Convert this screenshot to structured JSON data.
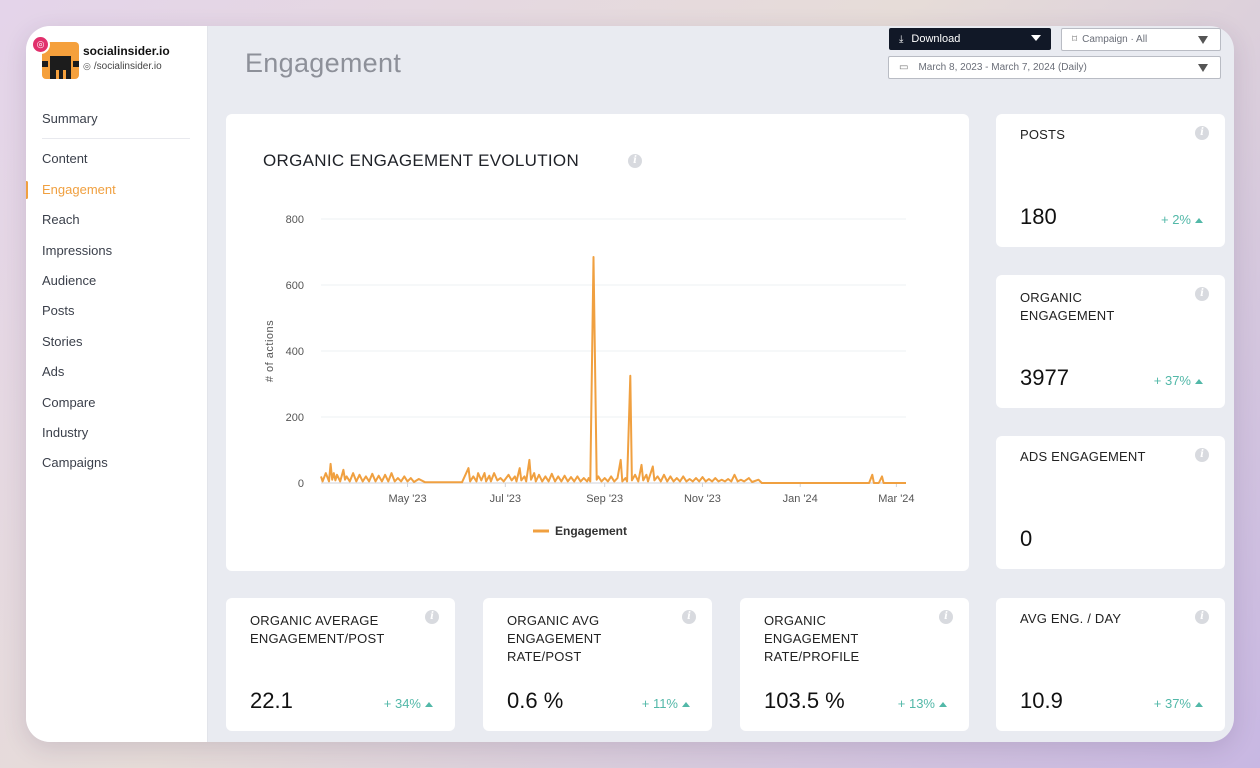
{
  "brand": {
    "name": "socialinsider.io",
    "handle": "/socialinsider.io"
  },
  "sidebar": {
    "items": [
      {
        "label": "Summary",
        "active": false
      },
      {
        "label": "Content",
        "active": false
      },
      {
        "label": "Engagement",
        "active": true
      },
      {
        "label": "Reach",
        "active": false
      },
      {
        "label": "Impressions",
        "active": false
      },
      {
        "label": "Audience",
        "active": false
      },
      {
        "label": "Posts",
        "active": false
      },
      {
        "label": "Stories",
        "active": false
      },
      {
        "label": "Ads",
        "active": false
      },
      {
        "label": "Compare",
        "active": false
      },
      {
        "label": "Industry",
        "active": false
      },
      {
        "label": "Campaigns",
        "active": false
      }
    ]
  },
  "header": {
    "title": "Engagement",
    "download_label": "Download",
    "campaign_label": "Campaign · All",
    "date_range": "March 8, 2023 - March 7, 2024 (Daily)"
  },
  "colors": {
    "accent": "#f0a040",
    "positive": "#52b8a8",
    "download_bg": "#111827"
  },
  "chart_data": {
    "type": "line",
    "title": "ORGANIC ENGAGEMENT EVOLUTION",
    "ylabel": "# of actions",
    "xlabel": "",
    "ylim": [
      0,
      800
    ],
    "yticks": [
      "800",
      "600",
      "400",
      "200",
      "0"
    ],
    "xticks": [
      "May '23",
      "Jul '23",
      "Sep '23",
      "Nov '23",
      "Jan '24",
      "Mar '24"
    ],
    "legend": "bottom-center",
    "grid": true,
    "series": [
      {
        "name": "Engagement",
        "color": "#f0a040",
        "points": [
          [
            "2023-03-08",
            20
          ],
          [
            "2023-03-09",
            5
          ],
          [
            "2023-03-11",
            30
          ],
          [
            "2023-03-13",
            5
          ],
          [
            "2023-03-14",
            58
          ],
          [
            "2023-03-15",
            10
          ],
          [
            "2023-03-16",
            30
          ],
          [
            "2023-03-17",
            8
          ],
          [
            "2023-03-18",
            25
          ],
          [
            "2023-03-20",
            5
          ],
          [
            "2023-03-22",
            40
          ],
          [
            "2023-03-23",
            10
          ],
          [
            "2023-03-24",
            20
          ],
          [
            "2023-03-26",
            5
          ],
          [
            "2023-03-28",
            30
          ],
          [
            "2023-03-30",
            5
          ],
          [
            "2023-04-01",
            25
          ],
          [
            "2023-04-03",
            5
          ],
          [
            "2023-04-05",
            20
          ],
          [
            "2023-04-07",
            5
          ],
          [
            "2023-04-09",
            28
          ],
          [
            "2023-04-11",
            5
          ],
          [
            "2023-04-13",
            22
          ],
          [
            "2023-04-15",
            5
          ],
          [
            "2023-04-17",
            25
          ],
          [
            "2023-04-19",
            5
          ],
          [
            "2023-04-21",
            30
          ],
          [
            "2023-04-23",
            5
          ],
          [
            "2023-04-25",
            15
          ],
          [
            "2023-04-27",
            5
          ],
          [
            "2023-04-29",
            20
          ],
          [
            "2023-05-01",
            5
          ],
          [
            "2023-05-03",
            15
          ],
          [
            "2023-05-05",
            3
          ],
          [
            "2023-05-08",
            12
          ],
          [
            "2023-05-12",
            2
          ],
          [
            "2023-05-20",
            2
          ],
          [
            "2023-05-28",
            2
          ],
          [
            "2023-06-04",
            2
          ],
          [
            "2023-06-08",
            45
          ],
          [
            "2023-06-09",
            5
          ],
          [
            "2023-06-11",
            20
          ],
          [
            "2023-06-13",
            5
          ],
          [
            "2023-06-14",
            30
          ],
          [
            "2023-06-16",
            8
          ],
          [
            "2023-06-18",
            30
          ],
          [
            "2023-06-19",
            5
          ],
          [
            "2023-06-21",
            22
          ],
          [
            "2023-06-22",
            5
          ],
          [
            "2023-06-24",
            30
          ],
          [
            "2023-06-26",
            8
          ],
          [
            "2023-06-28",
            15
          ],
          [
            "2023-06-30",
            5
          ],
          [
            "2023-07-03",
            25
          ],
          [
            "2023-07-05",
            8
          ],
          [
            "2023-07-07",
            20
          ],
          [
            "2023-07-08",
            5
          ],
          [
            "2023-07-10",
            45
          ],
          [
            "2023-07-11",
            8
          ],
          [
            "2023-07-13",
            20
          ],
          [
            "2023-07-14",
            5
          ],
          [
            "2023-07-16",
            70
          ],
          [
            "2023-07-17",
            10
          ],
          [
            "2023-07-19",
            30
          ],
          [
            "2023-07-20",
            5
          ],
          [
            "2023-07-22",
            25
          ],
          [
            "2023-07-24",
            5
          ],
          [
            "2023-07-26",
            20
          ],
          [
            "2023-07-28",
            5
          ],
          [
            "2023-07-30",
            28
          ],
          [
            "2023-08-01",
            5
          ],
          [
            "2023-08-03",
            20
          ],
          [
            "2023-08-05",
            5
          ],
          [
            "2023-08-07",
            22
          ],
          [
            "2023-08-09",
            5
          ],
          [
            "2023-08-11",
            18
          ],
          [
            "2023-08-13",
            5
          ],
          [
            "2023-08-15",
            20
          ],
          [
            "2023-08-17",
            5
          ],
          [
            "2023-08-19",
            15
          ],
          [
            "2023-08-21",
            5
          ],
          [
            "2023-08-22",
            15
          ],
          [
            "2023-08-23",
            5
          ],
          [
            "2023-08-25",
            685
          ],
          [
            "2023-08-27",
            10
          ],
          [
            "2023-08-28",
            20
          ],
          [
            "2023-08-30",
            5
          ],
          [
            "2023-09-01",
            15
          ],
          [
            "2023-09-03",
            5
          ],
          [
            "2023-09-05",
            20
          ],
          [
            "2023-09-07",
            5
          ],
          [
            "2023-09-09",
            15
          ],
          [
            "2023-09-11",
            70
          ],
          [
            "2023-09-12",
            5
          ],
          [
            "2023-09-14",
            15
          ],
          [
            "2023-09-15",
            5
          ],
          [
            "2023-09-17",
            325
          ],
          [
            "2023-09-18",
            8
          ],
          [
            "2023-09-20",
            25
          ],
          [
            "2023-09-22",
            5
          ],
          [
            "2023-09-24",
            55
          ],
          [
            "2023-09-25",
            8
          ],
          [
            "2023-09-27",
            25
          ],
          [
            "2023-09-28",
            5
          ],
          [
            "2023-10-01",
            50
          ],
          [
            "2023-10-02",
            8
          ],
          [
            "2023-10-04",
            20
          ],
          [
            "2023-10-06",
            5
          ],
          [
            "2023-10-08",
            25
          ],
          [
            "2023-10-10",
            5
          ],
          [
            "2023-10-12",
            20
          ],
          [
            "2023-10-14",
            5
          ],
          [
            "2023-10-16",
            15
          ],
          [
            "2023-10-18",
            5
          ],
          [
            "2023-10-20",
            20
          ],
          [
            "2023-10-22",
            5
          ],
          [
            "2023-10-24",
            12
          ],
          [
            "2023-10-26",
            5
          ],
          [
            "2023-10-28",
            15
          ],
          [
            "2023-10-30",
            5
          ],
          [
            "2023-11-01",
            18
          ],
          [
            "2023-11-03",
            5
          ],
          [
            "2023-11-05",
            12
          ],
          [
            "2023-11-07",
            5
          ],
          [
            "2023-11-09",
            15
          ],
          [
            "2023-11-11",
            5
          ],
          [
            "2023-11-13",
            10
          ],
          [
            "2023-11-15",
            5
          ],
          [
            "2023-11-17",
            12
          ],
          [
            "2023-11-19",
            5
          ],
          [
            "2023-11-21",
            25
          ],
          [
            "2023-11-23",
            5
          ],
          [
            "2023-11-25",
            10
          ],
          [
            "2023-11-27",
            5
          ],
          [
            "2023-11-30",
            15
          ],
          [
            "2023-12-02",
            3
          ],
          [
            "2023-12-06",
            10
          ],
          [
            "2023-12-08",
            0
          ],
          [
            "2024-01-01",
            0
          ],
          [
            "2024-02-01",
            0
          ],
          [
            "2024-02-13",
            0
          ],
          [
            "2024-02-15",
            25
          ],
          [
            "2024-02-16",
            0
          ],
          [
            "2024-02-19",
            0
          ],
          [
            "2024-02-21",
            20
          ],
          [
            "2024-02-22",
            0
          ],
          [
            "2024-03-07",
            0
          ]
        ]
      }
    ]
  },
  "stats": {
    "posts": {
      "label": "POSTS",
      "value": "180",
      "delta": "+ 2%"
    },
    "organic_engagement": {
      "label": "ORGANIC ENGAGEMENT",
      "value": "3977",
      "delta": "+ 37%"
    },
    "ads_engagement": {
      "label": "ADS ENGAGEMENT",
      "value": "0"
    },
    "avg_eng_post": {
      "label": "ORGANIC AVERAGE ENGAGEMENT/POST",
      "value": "22.1",
      "delta": "+ 34%"
    },
    "avg_eng_rate_post": {
      "label": "ORGANIC AVG ENGAGEMENT RATE/POST",
      "value": "0.6 %",
      "delta": "+ 11%"
    },
    "eng_rate_profile": {
      "label": "ORGANIC ENGAGEMENT RATE/PROFILE",
      "value": "103.5 %",
      "delta": "+ 13%"
    },
    "avg_eng_day": {
      "label": "AVG ENG. / DAY",
      "value": "10.9",
      "delta": "+ 37%"
    }
  }
}
